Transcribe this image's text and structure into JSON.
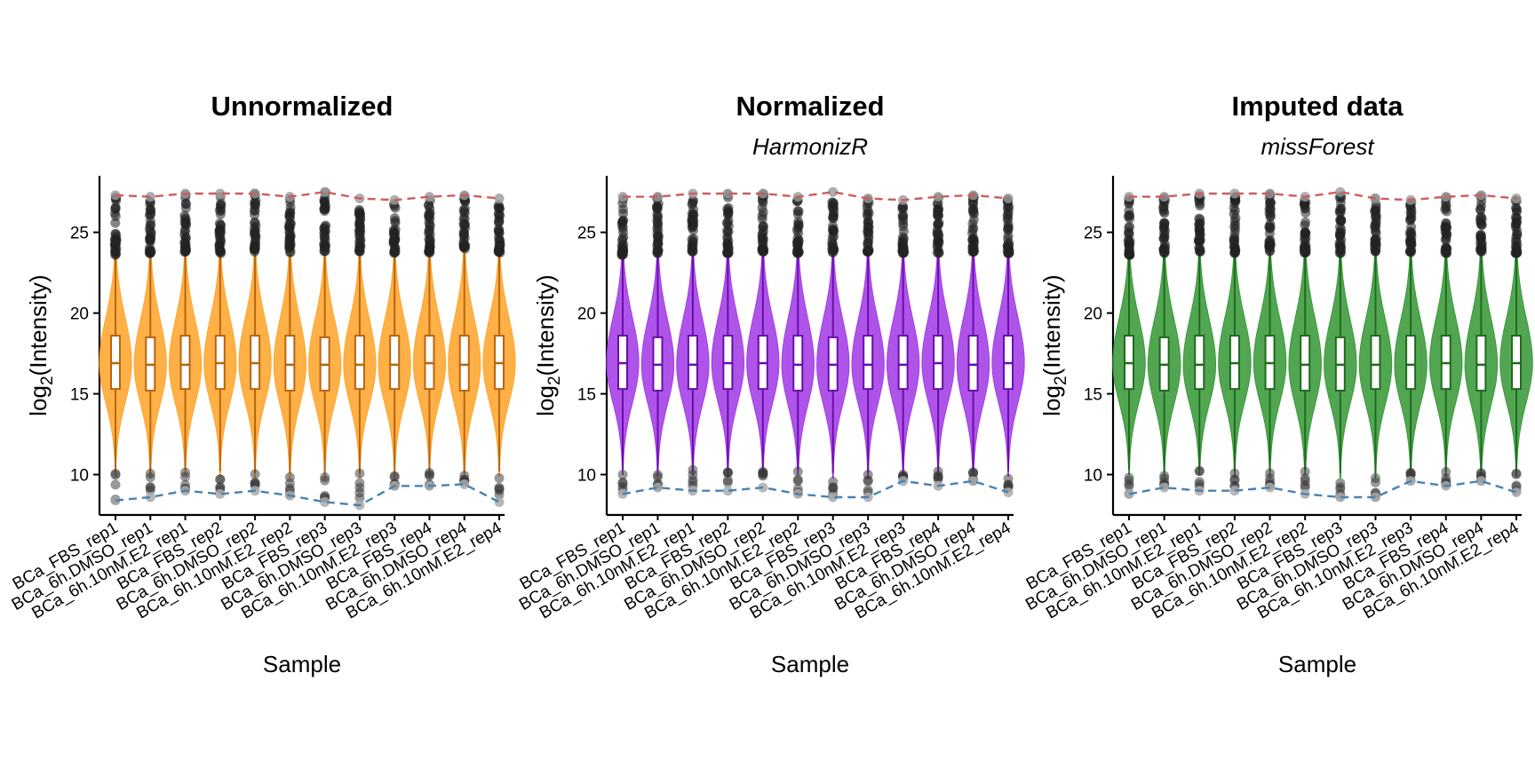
{
  "chart_data": [
    {
      "type": "violin",
      "title": "Unnormalized",
      "subtitle": "",
      "xlabel": "Sample",
      "ylabel": "log2(Intensity)",
      "ylim": [
        7.5,
        28.5
      ],
      "yticks": [
        10,
        15,
        20,
        25
      ],
      "color": "#FFA52C",
      "line_color": "#B8650F",
      "categories": [
        "BCa_FBS_rep1",
        "BCa_6h.DMSO_rep1",
        "BCa_6h.10nM.E2_rep1",
        "BCa_FBS_rep2",
        "BCa_6h.DMSO_rep2",
        "BCa_6h.10nM.E2_rep2",
        "BCa_FBS_rep3",
        "BCa_6h.DMSO_rep3",
        "BCa_6h.10nM.E2_rep3",
        "BCa_FBS_rep4",
        "BCa_6h.DMSO_rep4",
        "BCa_6h.10nM.E2_rep4"
      ],
      "median": [
        16.9,
        16.8,
        16.8,
        16.9,
        16.9,
        16.8,
        16.8,
        16.8,
        16.8,
        16.9,
        16.8,
        16.9
      ],
      "q1": [
        15.3,
        15.2,
        15.3,
        15.3,
        15.3,
        15.2,
        15.2,
        15.3,
        15.3,
        15.3,
        15.2,
        15.3
      ],
      "q3": [
        18.6,
        18.5,
        18.6,
        18.6,
        18.6,
        18.6,
        18.5,
        18.6,
        18.6,
        18.6,
        18.6,
        18.6
      ],
      "whisker_low": [
        10.2,
        10.1,
        10.3,
        10.2,
        10.1,
        10.1,
        10.0,
        10.1,
        10.1,
        10.2,
        10.1,
        10.2
      ],
      "whisker_high": [
        23.5,
        23.6,
        23.7,
        23.6,
        23.7,
        23.6,
        23.6,
        23.7,
        23.6,
        23.6,
        23.7,
        23.6
      ],
      "max_line": [
        27.3,
        27.2,
        27.4,
        27.4,
        27.4,
        27.2,
        27.5,
        27.1,
        27.0,
        27.2,
        27.3,
        27.1
      ],
      "min_line": [
        8.4,
        8.6,
        9.0,
        8.8,
        9.0,
        8.7,
        8.3,
        8.1,
        9.3,
        9.3,
        9.4,
        8.3
      ],
      "legend": "none"
    },
    {
      "type": "violin",
      "title": "Normalized",
      "subtitle": "HarmonizR",
      "xlabel": "Sample",
      "ylabel": "log2(Intensity)",
      "ylim": [
        7.5,
        28.5
      ],
      "yticks": [
        10,
        15,
        20,
        25
      ],
      "color": "#A43CE6",
      "line_color": "#6A0DAD",
      "categories": [
        "BCa_FBS_rep1",
        "BCa_6h.DMSO_rep1",
        "BCa_6h.10nM.E2_rep1",
        "BCa_FBS_rep2",
        "BCa_6h.DMSO_rep2",
        "BCa_6h.10nM.E2_rep2",
        "BCa_FBS_rep3",
        "BCa_6h.DMSO_rep3",
        "BCa_6h.10nM.E2_rep3",
        "BCa_FBS_rep4",
        "BCa_6h.DMSO_rep4",
        "BCa_6h.10nM.E2_rep4"
      ],
      "median": [
        16.9,
        16.8,
        16.8,
        16.9,
        16.9,
        16.8,
        16.8,
        16.8,
        16.8,
        16.9,
        16.8,
        16.9
      ],
      "q1": [
        15.3,
        15.2,
        15.3,
        15.3,
        15.3,
        15.2,
        15.2,
        15.3,
        15.3,
        15.3,
        15.2,
        15.3
      ],
      "q3": [
        18.6,
        18.5,
        18.6,
        18.6,
        18.6,
        18.6,
        18.5,
        18.6,
        18.6,
        18.6,
        18.6,
        18.6
      ],
      "whisker_low": [
        10.3,
        10.2,
        10.3,
        10.2,
        10.2,
        10.3,
        10.1,
        10.1,
        10.2,
        10.2,
        10.2,
        10.2
      ],
      "whisker_high": [
        23.5,
        23.6,
        23.7,
        23.6,
        23.7,
        23.6,
        23.6,
        23.7,
        23.6,
        23.6,
        23.7,
        23.6
      ],
      "max_line": [
        27.2,
        27.2,
        27.4,
        27.4,
        27.4,
        27.2,
        27.5,
        27.1,
        27.0,
        27.2,
        27.3,
        27.1
      ],
      "min_line": [
        8.8,
        9.2,
        9.0,
        9.0,
        9.2,
        8.8,
        8.6,
        8.6,
        9.6,
        9.3,
        9.6,
        8.9
      ],
      "legend": "none"
    },
    {
      "type": "violin",
      "title": "Imputed data",
      "subtitle": "missForest",
      "xlabel": "Sample",
      "ylabel": "log2(Intensity)",
      "ylim": [
        7.5,
        28.5
      ],
      "yticks": [
        10,
        15,
        20,
        25
      ],
      "color": "#3A9A3A",
      "line_color": "#1F6B1F",
      "categories": [
        "BCa_FBS_rep1",
        "BCa_6h.DMSO_rep1",
        "BCa_6h.10nM.E2_rep1",
        "BCa_FBS_rep2",
        "BCa_6h.DMSO_rep2",
        "BCa_6h.10nM.E2_rep2",
        "BCa_FBS_rep3",
        "BCa_6h.DMSO_rep3",
        "BCa_6h.10nM.E2_rep3",
        "BCa_FBS_rep4",
        "BCa_6h.DMSO_rep4",
        "BCa_6h.10nM.E2_rep4"
      ],
      "median": [
        16.9,
        16.8,
        16.8,
        16.9,
        16.9,
        16.8,
        16.8,
        16.8,
        16.8,
        16.9,
        16.8,
        16.9
      ],
      "q1": [
        15.3,
        15.2,
        15.3,
        15.3,
        15.3,
        15.2,
        15.2,
        15.3,
        15.3,
        15.3,
        15.2,
        15.3
      ],
      "q3": [
        18.6,
        18.5,
        18.6,
        18.6,
        18.6,
        18.6,
        18.5,
        18.6,
        18.6,
        18.6,
        18.6,
        18.6
      ],
      "whisker_low": [
        10.3,
        10.2,
        10.3,
        10.2,
        10.2,
        10.3,
        10.1,
        10.1,
        10.2,
        10.2,
        10.2,
        10.2
      ],
      "whisker_high": [
        23.5,
        23.6,
        23.7,
        23.6,
        23.7,
        23.6,
        23.6,
        23.7,
        23.6,
        23.6,
        23.7,
        23.6
      ],
      "max_line": [
        27.2,
        27.2,
        27.4,
        27.4,
        27.4,
        27.2,
        27.5,
        27.1,
        27.0,
        27.2,
        27.3,
        27.1
      ],
      "min_line": [
        8.8,
        9.2,
        9.0,
        9.0,
        9.2,
        8.8,
        8.6,
        8.6,
        9.6,
        9.3,
        9.6,
        8.9
      ],
      "legend": "none"
    }
  ]
}
